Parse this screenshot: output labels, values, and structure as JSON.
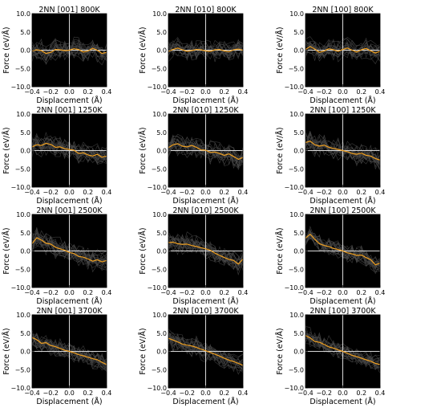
{
  "chart_data": [
    {
      "type": "line",
      "title": "2NN [001] 800K",
      "xlabel": "Displacement (Å)",
      "ylabel": "Force (eV/Å)",
      "xlim": [
        -0.4,
        0.4
      ],
      "ylim": [
        -10.0,
        10.0
      ],
      "xticks": [
        "−0.4",
        "−0.2",
        "0.0",
        "0.2",
        "0.4"
      ],
      "yticks": [
        "10.0",
        "5.0",
        "0.0",
        "−5.0",
        "−10.0"
      ],
      "grid": false,
      "series": [
        {
          "x": [
            -0.4,
            -0.35,
            -0.3,
            -0.25,
            -0.2,
            -0.15,
            -0.1,
            -0.05,
            0.0,
            0.05,
            0.1,
            0.15,
            0.2,
            0.25,
            0.3,
            0.35,
            0.4
          ],
          "y": [
            -0.2,
            0.1,
            -0.1,
            -0.9,
            -0.6,
            0.2,
            0.1,
            -0.1,
            0.0,
            0.4,
            0.2,
            -0.5,
            -0.2,
            0.5,
            0.0,
            -0.9,
            -0.6
          ],
          "color": "#f0a020"
        }
      ]
    },
    {
      "type": "line",
      "title": "2NN [010] 800K",
      "xlabel": "Displacement (Å)",
      "ylabel": "Force (eV/Å)",
      "xlim": [
        -0.4,
        0.4
      ],
      "ylim": [
        -10.0,
        10.0
      ],
      "xticks": [
        "−0.4",
        "−0.2",
        "0.0",
        "0.2",
        "0.4"
      ],
      "yticks": [
        "10.0",
        "5.0",
        "0.0",
        "−5.0",
        "−10.0"
      ],
      "grid": false,
      "series": [
        {
          "x": [
            -0.4,
            -0.35,
            -0.3,
            -0.25,
            -0.2,
            -0.15,
            -0.1,
            -0.05,
            0.0,
            0.05,
            0.1,
            0.15,
            0.2,
            0.25,
            0.3,
            0.35,
            0.4
          ],
          "y": [
            -0.3,
            0.2,
            0.6,
            0.1,
            -0.3,
            -0.1,
            0.2,
            0.1,
            -0.2,
            -0.3,
            0.1,
            0.2,
            -0.2,
            -0.4,
            0.1,
            0.3,
            0.0
          ],
          "color": "#f0a020"
        }
      ]
    },
    {
      "type": "line",
      "title": "2NN [100] 800K",
      "xlabel": "Displacement (Å)",
      "ylabel": "Force (eV/Å)",
      "xlim": [
        -0.4,
        0.4
      ],
      "ylim": [
        -10.0,
        10.0
      ],
      "xticks": [
        "−0.4",
        "−0.2",
        "0.0",
        "0.2",
        "0.4"
      ],
      "yticks": [
        "10.0",
        "5.0",
        "0.0",
        "−5.0",
        "−10.0"
      ],
      "grid": false,
      "series": [
        {
          "x": [
            -0.4,
            -0.35,
            -0.3,
            -0.25,
            -0.2,
            -0.15,
            -0.1,
            -0.05,
            0.0,
            0.05,
            0.1,
            0.15,
            0.2,
            0.25,
            0.3,
            0.35,
            0.4
          ],
          "y": [
            0.2,
            1.0,
            0.3,
            -0.6,
            -0.2,
            0.4,
            0.1,
            -0.3,
            0.2,
            0.6,
            0.0,
            -0.5,
            0.1,
            0.5,
            -0.2,
            -0.8,
            -0.3
          ],
          "color": "#f0a020"
        }
      ]
    },
    {
      "type": "line",
      "title": "2NN [001] 1250K",
      "xlabel": "Displacement (Å)",
      "ylabel": "Force (eV/Å)",
      "xlim": [
        -0.4,
        0.4
      ],
      "ylim": [
        -10.0,
        10.0
      ],
      "xticks": [
        "−0.4",
        "−0.2",
        "0.0",
        "0.2",
        "0.4"
      ],
      "yticks": [
        "10.0",
        "5.0",
        "0.0",
        "−5.0",
        "−10.0"
      ],
      "grid": false,
      "series": [
        {
          "x": [
            -0.4,
            -0.35,
            -0.3,
            -0.25,
            -0.2,
            -0.15,
            -0.1,
            -0.05,
            0.0,
            0.05,
            0.1,
            0.15,
            0.2,
            0.25,
            0.3,
            0.35,
            0.4
          ],
          "y": [
            1.0,
            1.6,
            1.4,
            2.0,
            1.7,
            0.9,
            1.0,
            0.5,
            0.3,
            0.1,
            -0.8,
            -0.6,
            -1.2,
            -1.5,
            -1.0,
            -1.8,
            -1.5
          ],
          "color": "#f0a020"
        }
      ]
    },
    {
      "type": "line",
      "title": "2NN [010] 1250K",
      "xlabel": "Displacement (Å)",
      "ylabel": "Force (eV/Å)",
      "xlim": [
        -0.4,
        0.4
      ],
      "ylim": [
        -10.0,
        10.0
      ],
      "xticks": [
        "−0.4",
        "−0.2",
        "0.0",
        "0.2",
        "0.4"
      ],
      "yticks": [
        "10.0",
        "5.0",
        "0.0",
        "−5.0",
        "−10.0"
      ],
      "grid": false,
      "series": [
        {
          "x": [
            -0.4,
            -0.35,
            -0.3,
            -0.25,
            -0.2,
            -0.15,
            -0.1,
            -0.05,
            0.0,
            0.05,
            0.1,
            0.15,
            0.2,
            0.25,
            0.3,
            0.35,
            0.4
          ],
          "y": [
            0.8,
            1.6,
            1.9,
            1.2,
            1.0,
            1.4,
            0.9,
            0.2,
            0.1,
            -0.5,
            -0.4,
            -0.8,
            -1.3,
            -0.9,
            -1.6,
            -2.4,
            -1.9
          ],
          "color": "#f0a020"
        }
      ]
    },
    {
      "type": "line",
      "title": "2NN [100] 1250K",
      "xlabel": "Displacement (Å)",
      "ylabel": "Force (eV/Å)",
      "xlim": [
        -0.4,
        0.4
      ],
      "ylim": [
        -10.0,
        10.0
      ],
      "xticks": [
        "−0.4",
        "−0.2",
        "0.0",
        "0.2",
        "0.4"
      ],
      "yticks": [
        "10.0",
        "5.0",
        "0.0",
        "−5.0",
        "−10.0"
      ],
      "grid": false,
      "series": [
        {
          "x": [
            -0.4,
            -0.35,
            -0.3,
            -0.25,
            -0.2,
            -0.15,
            -0.1,
            -0.05,
            0.0,
            0.05,
            0.1,
            0.15,
            0.2,
            0.25,
            0.3,
            0.35,
            0.4
          ],
          "y": [
            2.2,
            2.6,
            1.6,
            1.2,
            1.5,
            0.9,
            0.6,
            0.3,
            0.0,
            -0.3,
            -0.8,
            -1.0,
            -0.7,
            -1.3,
            -1.5,
            -2.2,
            -2.6
          ],
          "color": "#f0a020"
        }
      ]
    },
    {
      "type": "line",
      "title": "2NN [001] 2500K",
      "xlabel": "Displacement (Å)",
      "ylabel": "Force (eV/Å)",
      "xlim": [
        -0.4,
        0.4
      ],
      "ylim": [
        -10.0,
        10.0
      ],
      "xticks": [
        "−0.4",
        "−0.2",
        "0.0",
        "0.2",
        "0.4"
      ],
      "yticks": [
        "10.0",
        "5.0",
        "0.0",
        "−5.0",
        "−10.0"
      ],
      "grid": false,
      "series": [
        {
          "x": [
            -0.4,
            -0.35,
            -0.3,
            -0.25,
            -0.2,
            -0.15,
            -0.1,
            -0.05,
            0.0,
            0.05,
            0.1,
            0.15,
            0.2,
            0.25,
            0.3,
            0.35,
            0.4
          ],
          "y": [
            2.0,
            3.6,
            3.0,
            2.1,
            1.9,
            1.0,
            0.6,
            0.2,
            -0.4,
            -0.7,
            -1.5,
            -1.7,
            -2.2,
            -2.8,
            -2.4,
            -3.0,
            -2.6
          ],
          "color": "#f0a020"
        }
      ]
    },
    {
      "type": "line",
      "title": "2NN [010] 2500K",
      "xlabel": "Displacement (Å)",
      "ylabel": "Force (eV/Å)",
      "xlim": [
        -0.4,
        0.4
      ],
      "ylim": [
        -10.0,
        10.0
      ],
      "xticks": [
        "−0.4",
        "−0.2",
        "0.0",
        "0.2",
        "0.4"
      ],
      "yticks": [
        "10.0",
        "5.0",
        "0.0",
        "−5.0",
        "−10.0"
      ],
      "grid": false,
      "series": [
        {
          "x": [
            -0.4,
            -0.35,
            -0.3,
            -0.25,
            -0.2,
            -0.15,
            -0.1,
            -0.05,
            0.0,
            0.05,
            0.1,
            0.15,
            0.2,
            0.25,
            0.3,
            0.35,
            0.4
          ],
          "y": [
            2.3,
            2.4,
            2.0,
            1.8,
            1.9,
            1.5,
            1.2,
            0.9,
            0.6,
            0.2,
            -0.6,
            -1.2,
            -1.8,
            -2.3,
            -2.6,
            -3.6,
            -2.2
          ],
          "color": "#f0a020"
        }
      ]
    },
    {
      "type": "line",
      "title": "2NN [100] 2500K",
      "xlabel": "Displacement (Å)",
      "ylabel": "Force (eV/Å)",
      "xlim": [
        -0.4,
        0.4
      ],
      "ylim": [
        -10.0,
        10.0
      ],
      "xticks": [
        "−0.4",
        "−0.2",
        "0.0",
        "0.2",
        "0.4"
      ],
      "yticks": [
        "10.0",
        "5.0",
        "0.0",
        "−5.0",
        "−10.0"
      ],
      "grid": false,
      "series": [
        {
          "x": [
            -0.4,
            -0.35,
            -0.3,
            -0.25,
            -0.2,
            -0.15,
            -0.1,
            -0.05,
            0.0,
            0.05,
            0.1,
            0.15,
            0.2,
            0.25,
            0.3,
            0.35,
            0.4
          ],
          "y": [
            3.5,
            4.6,
            3.2,
            2.0,
            1.5,
            1.2,
            0.7,
            0.4,
            0.0,
            -0.5,
            -0.8,
            -1.2,
            -1.1,
            -1.8,
            -2.4,
            -3.8,
            -3.3
          ],
          "color": "#f0a020"
        }
      ]
    },
    {
      "type": "line",
      "title": "2NN [001] 3700K",
      "xlabel": "Displacement (Å)",
      "ylabel": "Force (eV/Å)",
      "xlim": [
        -0.4,
        0.4
      ],
      "ylim": [
        -10.0,
        10.0
      ],
      "xticks": [
        "−0.4",
        "−0.2",
        "0.0",
        "0.2",
        "0.4"
      ],
      "yticks": [
        "10.0",
        "5.0",
        "0.0",
        "−5.0",
        "−10.0"
      ],
      "grid": false,
      "series": [
        {
          "x": [
            -0.4,
            -0.35,
            -0.3,
            -0.25,
            -0.2,
            -0.15,
            -0.1,
            -0.05,
            0.0,
            0.05,
            0.1,
            0.15,
            0.2,
            0.25,
            0.3,
            0.35,
            0.4
          ],
          "y": [
            3.8,
            3.2,
            2.2,
            2.4,
            1.6,
            1.3,
            0.8,
            0.3,
            0.0,
            -0.4,
            -0.9,
            -1.2,
            -1.6,
            -2.0,
            -2.3,
            -3.0,
            -3.6
          ],
          "color": "#f0a020"
        }
      ]
    },
    {
      "type": "line",
      "title": "2NN [010] 3700K",
      "xlabel": "Displacement (Å)",
      "ylabel": "Force (eV/Å)",
      "xlim": [
        -0.4,
        0.4
      ],
      "ylim": [
        -10.0,
        10.0
      ],
      "xticks": [
        "−0.4",
        "−0.2",
        "0.0",
        "0.2",
        "0.4"
      ],
      "yticks": [
        "10.0",
        "5.0",
        "0.0",
        "−5.0",
        "−10.0"
      ],
      "grid": false,
      "series": [
        {
          "x": [
            -0.4,
            -0.35,
            -0.3,
            -0.25,
            -0.2,
            -0.15,
            -0.1,
            -0.05,
            0.0,
            0.05,
            0.1,
            0.15,
            0.2,
            0.25,
            0.3,
            0.35,
            0.4
          ],
          "y": [
            3.6,
            3.1,
            2.6,
            2.0,
            1.7,
            1.5,
            1.1,
            0.6,
            0.2,
            -0.3,
            -0.8,
            -1.3,
            -1.9,
            -2.4,
            -2.8,
            -3.3,
            -3.8
          ],
          "color": "#f0a020"
        }
      ]
    },
    {
      "type": "line",
      "title": "2NN [100] 3700K",
      "xlabel": "Displacement (Å)",
      "ylabel": "Force (eV/Å)",
      "xlim": [
        -0.4,
        0.4
      ],
      "ylim": [
        -10.0,
        10.0
      ],
      "xticks": [
        "−0.4",
        "−0.2",
        "0.0",
        "0.2",
        "0.4"
      ],
      "yticks": [
        "10.0",
        "5.0",
        "0.0",
        "−5.0",
        "−10.0"
      ],
      "grid": false,
      "series": [
        {
          "x": [
            -0.4,
            -0.35,
            -0.3,
            -0.25,
            -0.2,
            -0.15,
            -0.1,
            -0.05,
            0.0,
            0.05,
            0.1,
            0.15,
            0.2,
            0.25,
            0.3,
            0.35,
            0.4
          ],
          "y": [
            4.3,
            3.7,
            2.7,
            2.5,
            1.9,
            1.2,
            0.9,
            0.4,
            0.0,
            -0.5,
            -1.1,
            -1.4,
            -1.9,
            -2.3,
            -2.7,
            -3.3,
            -3.6
          ],
          "color": "#f0a020"
        }
      ]
    }
  ],
  "colors": {
    "plot_background": "#000000",
    "mean_line": "#f0a020",
    "zero_lines": "#d8d8d8",
    "sample_traces": "#4a4a4a"
  }
}
